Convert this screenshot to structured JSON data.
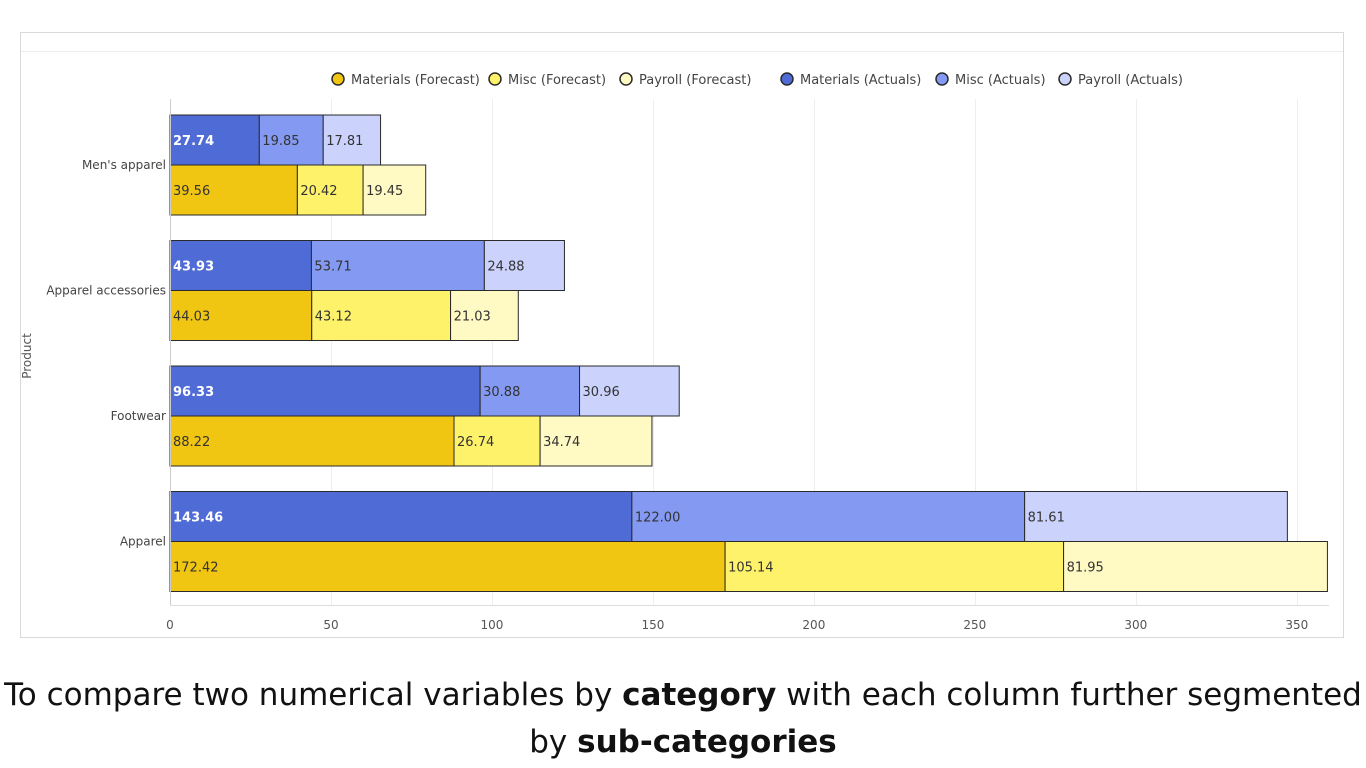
{
  "chart_data": {
    "type": "bar",
    "orientation": "horizontal",
    "stacked": true,
    "ylabel": "Product",
    "xlim": [
      0,
      360
    ],
    "x_ticks": [
      0,
      50,
      100,
      150,
      200,
      250,
      300,
      350
    ],
    "grid": true,
    "legend_position": "top",
    "categories": [
      "Men's apparel",
      "Apparel accessories",
      "Footwear",
      "Apparel"
    ],
    "groups": [
      {
        "name": "Actuals",
        "series": [
          {
            "name": "Materials (Actuals)",
            "color": "#4f6bd6",
            "label_color": "#ffffff",
            "label_bold": true,
            "values": [
              27.74,
              43.93,
              96.33,
              143.46
            ]
          },
          {
            "name": "Misc (Actuals)",
            "color": "#8499f1",
            "label_color": "#333333",
            "label_bold": false,
            "values": [
              19.85,
              53.71,
              30.88,
              122.0
            ]
          },
          {
            "name": "Payroll (Actuals)",
            "color": "#cbd3fd",
            "label_color": "#333333",
            "label_bold": false,
            "values": [
              17.81,
              24.88,
              30.96,
              81.61
            ]
          }
        ]
      },
      {
        "name": "Forecast",
        "series": [
          {
            "name": "Materials (Forecast)",
            "color": "#f0c613",
            "label_color": "#333333",
            "label_bold": false,
            "values": [
              39.56,
              44.03,
              88.22,
              172.42
            ]
          },
          {
            "name": "Misc (Forecast)",
            "color": "#fff26b",
            "label_color": "#333333",
            "label_bold": false,
            "values": [
              20.42,
              43.12,
              26.74,
              105.14
            ]
          },
          {
            "name": "Payroll (Forecast)",
            "color": "#fff9c4",
            "label_color": "#333333",
            "label_bold": false,
            "values": [
              19.45,
              21.03,
              34.74,
              81.95
            ]
          }
        ]
      }
    ],
    "legend_order": [
      "Materials (Forecast)",
      "Misc (Forecast)",
      "Payroll (Forecast)",
      "Materials (Actuals)",
      "Misc (Actuals)",
      "Payroll (Actuals)"
    ]
  },
  "caption": {
    "part1": "To compare two numerical variables by ",
    "bold1": "category",
    "part2": " with each column further segmented by ",
    "bold2": "sub-categories"
  }
}
